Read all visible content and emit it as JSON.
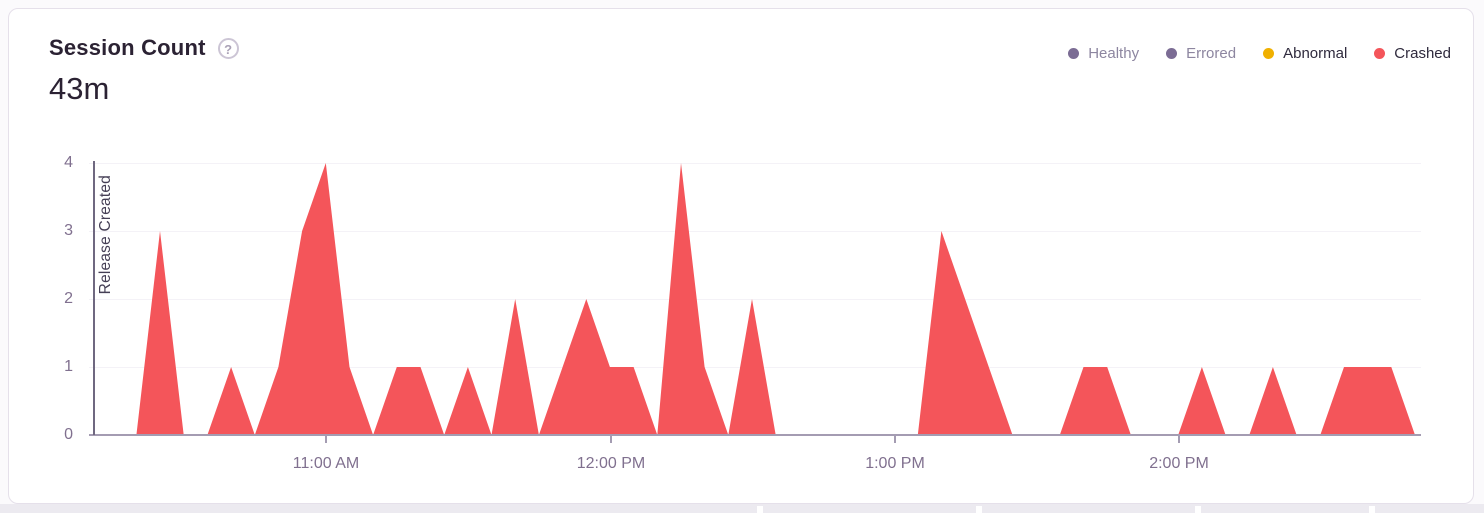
{
  "card": {
    "title": "Session Count",
    "help_glyph": "?",
    "total": "43m"
  },
  "legend": [
    {
      "label": "Healthy",
      "dot_color": "#7b6c94",
      "text_color": "#8d86a0"
    },
    {
      "label": "Errored",
      "dot_color": "#7b6c94",
      "text_color": "#8d86a0"
    },
    {
      "label": "Abnormal",
      "dot_color": "#f0b000",
      "text_color": "#2f2a3d"
    },
    {
      "label": "Crashed",
      "dot_color": "#f4555a",
      "text_color": "#2f2a3d"
    }
  ],
  "chart_data": {
    "type": "area",
    "title": "Session Count",
    "total_label": "43m",
    "xlabel": "",
    "ylabel": "",
    "ylim": [
      0,
      4
    ],
    "grid": true,
    "legend_position": "top-right",
    "annotation_label": "Release Created",
    "xticks": [
      "11:00 AM",
      "12:00 PM",
      "1:00 PM",
      "2:00 PM"
    ],
    "yticks": [
      "0",
      "1",
      "2",
      "3",
      "4"
    ],
    "x": [
      "10:10 AM",
      "10:15 AM",
      "10:20 AM",
      "10:25 AM",
      "10:30 AM",
      "10:35 AM",
      "10:40 AM",
      "10:45 AM",
      "10:50 AM",
      "10:55 AM",
      "11:00 AM",
      "11:05 AM",
      "11:10 AM",
      "11:15 AM",
      "11:20 AM",
      "11:25 AM",
      "11:30 AM",
      "11:35 AM",
      "11:40 AM",
      "11:45 AM",
      "11:50 AM",
      "11:55 AM",
      "12:00 PM",
      "12:05 PM",
      "12:10 PM",
      "12:15 PM",
      "12:20 PM",
      "12:25 PM",
      "12:30 PM",
      "12:35 PM",
      "12:40 PM",
      "12:45 PM",
      "12:50 PM",
      "12:55 PM",
      "1:00 PM",
      "1:05 PM",
      "1:10 PM",
      "1:15 PM",
      "1:20 PM",
      "1:25 PM",
      "1:30 PM",
      "1:35 PM",
      "1:40 PM",
      "1:45 PM",
      "1:50 PM",
      "1:55 PM",
      "2:00 PM",
      "2:05 PM",
      "2:10 PM",
      "2:15 PM",
      "2:20 PM",
      "2:25 PM",
      "2:30 PM",
      "2:35 PM",
      "2:40 PM",
      "2:45 PM",
      "2:50 PM"
    ],
    "series": [
      {
        "name": "Crashed",
        "color": "#f4555a",
        "values": [
          0,
          0,
          0,
          3,
          0,
          0,
          1,
          0,
          1,
          3,
          4,
          1,
          0,
          1,
          1,
          0,
          1,
          0,
          2,
          0,
          1,
          2,
          1,
          1,
          0,
          4,
          1,
          0,
          2,
          0,
          0,
          0,
          0,
          0,
          0,
          0,
          3,
          2,
          1,
          0,
          0,
          0,
          1,
          1,
          0,
          0,
          0,
          1,
          0,
          0,
          1,
          0,
          0,
          1,
          1,
          1,
          0
        ]
      }
    ]
  }
}
